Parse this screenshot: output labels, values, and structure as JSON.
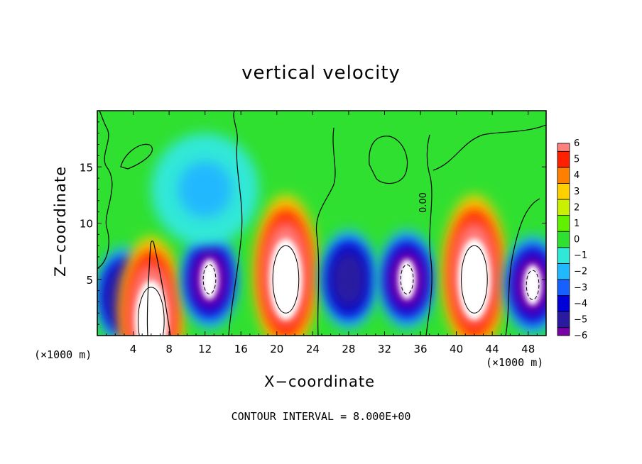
{
  "chart_data": {
    "type": "heatmap",
    "title": "vertical velocity",
    "xlabel": "X−coordinate",
    "ylabel": "Z−coordinate",
    "x_unit_label": "(×1000 m)",
    "y_unit_label": "(×1000 m)",
    "xlim": [
      0,
      50
    ],
    "ylim": [
      0,
      20
    ],
    "x_ticks": [
      4,
      8,
      12,
      16,
      20,
      24,
      28,
      32,
      36,
      40,
      44,
      48
    ],
    "x_tick_labels": [
      "4",
      "8",
      "12",
      "16",
      "20",
      "24",
      "28",
      "32",
      "36",
      "40",
      "44",
      "48"
    ],
    "y_ticks": [
      5,
      10,
      15
    ],
    "y_tick_labels": [
      "5",
      "10",
      "15"
    ],
    "contour_interval_text": "CONTOUR INTERVAL = 8.000E+00",
    "contour_label": "0.00",
    "colorbar": {
      "levels": [
        -6,
        -5,
        -4,
        -3,
        -2,
        -1,
        0,
        1,
        2,
        3,
        4,
        5,
        6
      ],
      "labels": [
        "−6",
        "−5",
        "−4",
        "−3",
        "−2",
        "−1",
        "0",
        "1",
        "2",
        "3",
        "4",
        "5",
        "6"
      ],
      "colors": [
        "#7a00a8",
        "#2a1aa0",
        "#0000d8",
        "#1560ff",
        "#20b8ff",
        "#30e8d8",
        "#30e030",
        "#60f000",
        "#c8f000",
        "#ffd000",
        "#ff8000",
        "#ff2000",
        "#ff7f7f"
      ]
    },
    "background_value": 0.3,
    "features": [
      {
        "kind": "downdraft",
        "x": 3,
        "z": 3.5,
        "value": -4.5
      },
      {
        "kind": "updraft",
        "x": 6,
        "z": 1.8,
        "value": 6
      },
      {
        "kind": "downdraft",
        "x": 12.5,
        "z": 5,
        "value": -6
      },
      {
        "kind": "updraft",
        "x": 21,
        "z": 5.5,
        "value": 6
      },
      {
        "kind": "downdraft",
        "x": 28,
        "z": 5,
        "value": -5
      },
      {
        "kind": "downdraft",
        "x": 34.5,
        "z": 5,
        "value": -6
      },
      {
        "kind": "updraft",
        "x": 42,
        "z": 5.5,
        "value": 6
      },
      {
        "kind": "downdraft",
        "x": 48.5,
        "z": 4.5,
        "value": -6
      },
      {
        "kind": "weak-downdraft",
        "x": 12,
        "z": 13,
        "value": -2
      }
    ]
  }
}
